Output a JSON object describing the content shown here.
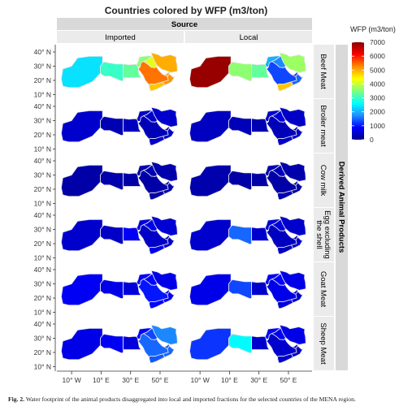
{
  "title": "Countries colored by WFP (m3/ton)",
  "facet_col_title": "Source",
  "facet_row_title": "Derived Animal Products",
  "columns": [
    "Imported",
    "Local"
  ],
  "rows": [
    "Beef Meat",
    "Broiler meat",
    "Cow milk",
    "Egg excluding the shell",
    "Goat Meat",
    "Sheep Meat"
  ],
  "y_ticks": [
    "40° N",
    "30° N",
    "20° N",
    "10° N"
  ],
  "x_ticks": [
    "10° W",
    "10° E",
    "30° E",
    "50° E"
  ],
  "legend": {
    "title": "WFP (m3/ton)",
    "ticks": [
      "7000",
      "6000",
      "5000",
      "4000",
      "3000",
      "2000",
      "1000",
      "0"
    ],
    "min": 0,
    "max": 7000,
    "colors": [
      "#00008b",
      "#0000ff",
      "#1e90ff",
      "#00ffff",
      "#7fff7f",
      "#ffff00",
      "#ff8c00",
      "#ff0000",
      "#8b0000"
    ]
  },
  "caption": {
    "label": "Fig. 2.",
    "text": "Water footprint of the animal products disaggregated into local and imported fractions for the selected countries of the MENA region."
  },
  "chart_data": {
    "type": "choropleth",
    "value_unit": "m3/ton",
    "panels": [
      {
        "row": "Beef Meat",
        "column": "Imported",
        "maghreb": 2400,
        "libya": 3000,
        "egypt": 3300,
        "levant": 3600,
        "saudi": 5400,
        "iraq": 4200,
        "iran": 5000,
        "yemen": 4800,
        "oman": 5200,
        "gulf": 5000
      },
      {
        "row": "Beef Meat",
        "column": "Local",
        "maghreb": 6900,
        "libya": 3600,
        "egypt": 3300,
        "levant": 2000,
        "saudi": 1300,
        "iraq": 1700,
        "iran": 3700,
        "yemen": 4800,
        "oman": 1500,
        "gulf": 1200
      },
      {
        "row": "Broiler meat",
        "column": "Imported",
        "maghreb": 500,
        "libya": 300,
        "egypt": 400,
        "levant": 500,
        "saudi": 350,
        "iraq": 500,
        "iran": 500,
        "yemen": 500,
        "oman": 450,
        "gulf": 350
      },
      {
        "row": "Broiler meat",
        "column": "Local",
        "maghreb": 400,
        "libya": 350,
        "egypt": 300,
        "levant": 500,
        "saudi": 350,
        "iraq": 600,
        "iran": 450,
        "yemen": 500,
        "oman": 450,
        "gulf": 400
      },
      {
        "row": "Cow milk",
        "column": "Imported",
        "maghreb": 200,
        "libya": 250,
        "egypt": 200,
        "levant": 250,
        "saudi": 200,
        "iraq": 300,
        "iran": 250,
        "yemen": 200,
        "oman": 250,
        "gulf": 200
      },
      {
        "row": "Cow milk",
        "column": "Local",
        "maghreb": 250,
        "libya": 200,
        "egypt": 200,
        "levant": 300,
        "saudi": 200,
        "iraq": 350,
        "iran": 250,
        "yemen": 300,
        "oman": 200,
        "gulf": 200
      },
      {
        "row": "Egg excluding the shell",
        "column": "Imported",
        "maghreb": 500,
        "libya": 450,
        "egypt": 800,
        "levant": 600,
        "saudi": 450,
        "iraq": 700,
        "iran": 550,
        "yemen": 700,
        "oman": 500,
        "gulf": 450
      },
      {
        "row": "Egg excluding the shell",
        "column": "Local",
        "maghreb": 500,
        "libya": 1500,
        "egypt": 500,
        "levant": 600,
        "saudi": 400,
        "iraq": 600,
        "iran": 500,
        "yemen": 400,
        "oman": 500,
        "gulf": 400
      },
      {
        "row": "Goat Meat",
        "column": "Imported",
        "maghreb": 800,
        "libya": 700,
        "egypt": 600,
        "levant": 800,
        "saudi": 1000,
        "iraq": 900,
        "iran": 700,
        "yemen": 900,
        "oman": 800,
        "gulf": 800
      },
      {
        "row": "Goat Meat",
        "column": "Local",
        "maghreb": 700,
        "libya": 1300,
        "egypt": 500,
        "levant": 800,
        "saudi": 700,
        "iraq": 900,
        "iran": 700,
        "yemen": 600,
        "oman": 500,
        "gulf": 600
      },
      {
        "row": "Sheep Meat",
        "column": "Imported",
        "maghreb": 700,
        "libya": 800,
        "egypt": 600,
        "levant": 900,
        "saudi": 1500,
        "iraq": 1300,
        "iran": 1700,
        "yemen": 1400,
        "oman": 1500,
        "gulf": 1300
      },
      {
        "row": "Sheep Meat",
        "column": "Local",
        "maghreb": 1200,
        "libya": 2600,
        "egypt": 500,
        "levant": 900,
        "saudi": 500,
        "iraq": 800,
        "iran": 700,
        "yemen": 500,
        "oman": 400,
        "gulf": 600
      }
    ]
  }
}
